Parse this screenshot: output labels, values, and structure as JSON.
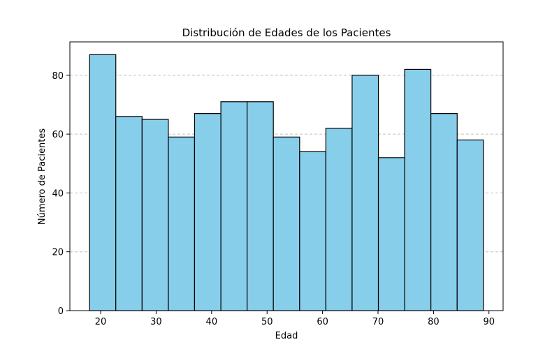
{
  "chart_data": {
    "type": "bar",
    "title": "Distribución de Edades de los Pacientes",
    "xlabel": "Edad",
    "ylabel": "Número de Pacientes",
    "bin_edges": [
      18,
      22.73,
      27.47,
      32.2,
      36.93,
      41.67,
      46.4,
      51.13,
      55.87,
      60.6,
      65.33,
      70.07,
      74.8,
      79.53,
      84.27,
      89
    ],
    "values": [
      87,
      66,
      65,
      59,
      67,
      71,
      71,
      59,
      54,
      62,
      80,
      52,
      82,
      67,
      58
    ],
    "xlim": [
      14.45,
      92.55
    ],
    "ylim": [
      0,
      91.35
    ],
    "xticks": [
      20,
      30,
      40,
      50,
      60,
      70,
      80,
      90
    ],
    "yticks": [
      0,
      20,
      40,
      60,
      80
    ],
    "grid": "y-dashed",
    "colors": {
      "bar_fill": "#87CEEB",
      "bar_edge": "#000000",
      "grid": "#c0c0c0"
    }
  }
}
